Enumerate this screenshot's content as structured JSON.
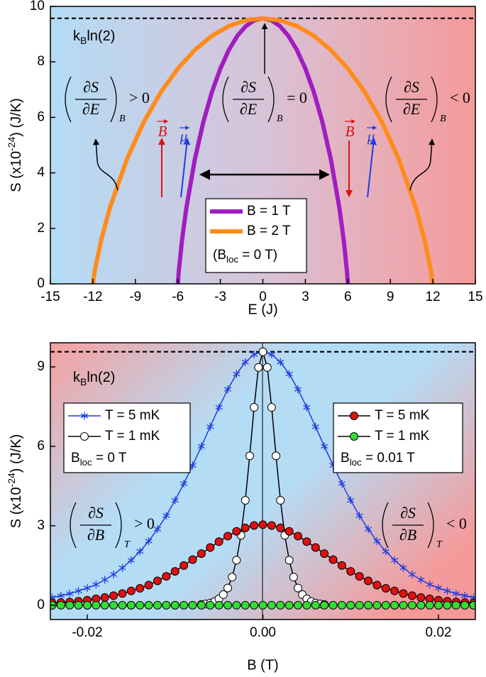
{
  "chart_data": [
    {
      "type": "line",
      "xlabel": "E (J)",
      "ylabel": [
        "S (x10",
        "-24",
        ") (J/K)"
      ],
      "xlim": [
        -15,
        15
      ],
      "xticks": [
        -15,
        -12,
        -9,
        -6,
        -3,
        0,
        3,
        6,
        9,
        12,
        15
      ],
      "ylim": [
        0,
        10
      ],
      "yticks": [
        0,
        2,
        4,
        6,
        8,
        10
      ],
      "reference_line": {
        "value": 9.57,
        "label": [
          "k",
          "B",
          "ln(2)"
        ]
      },
      "series": [
        {
          "name": "B = 1 T",
          "color": "#a01ec0",
          "x": [
            -6,
            -5.94,
            -5.7,
            -5.4,
            -4.8,
            -4.2,
            -3.6,
            -3,
            -2.4,
            -1.8,
            -1.2,
            -0.6,
            0,
            0.6,
            1.2,
            1.8,
            2.4,
            3,
            3.6,
            4.2,
            4.8,
            5.4,
            5.7,
            5.94,
            6
          ],
          "values": [
            0,
            0.43,
            1.61,
            2.74,
            4.49,
            5.84,
            6.91,
            7.76,
            8.43,
            8.94,
            9.29,
            9.5,
            9.57,
            9.5,
            9.29,
            8.94,
            8.43,
            7.76,
            6.91,
            5.84,
            4.49,
            2.74,
            1.61,
            0.43,
            0
          ]
        },
        {
          "name": "B = 2 T",
          "color": "#ff8c1a",
          "x": [
            -12,
            -11.88,
            -11.4,
            -10.8,
            -9.6,
            -8.4,
            -7.2,
            -6,
            -4.8,
            -3.6,
            -2.4,
            -1.2,
            0,
            1.2,
            2.4,
            3.6,
            4.8,
            6,
            7.2,
            8.4,
            9.6,
            10.8,
            11.4,
            11.88,
            12
          ],
          "values": [
            0,
            0.43,
            1.61,
            2.74,
            4.49,
            5.84,
            6.91,
            7.76,
            8.43,
            8.94,
            9.29,
            9.5,
            9.57,
            9.5,
            9.29,
            8.94,
            8.43,
            7.76,
            6.91,
            5.84,
            4.49,
            2.74,
            1.61,
            0.43,
            0
          ]
        }
      ],
      "legend_notes": [
        [
          "(B",
          "loc",
          " = 0 T)"
        ]
      ],
      "annotations": [
        {
          "numerator": "∂S",
          "denominator": "∂E",
          "subscript": "B",
          "relation": "> 0"
        },
        {
          "numerator": "∂S",
          "denominator": "∂E",
          "subscript": "B",
          "relation": "= 0"
        },
        {
          "numerator": "∂S",
          "denominator": "∂E",
          "subscript": "B",
          "relation": "< 0"
        }
      ],
      "vector_labels": [
        "B",
        "μ"
      ]
    },
    {
      "type": "line",
      "xlabel": "B (T)",
      "ylabel": [
        "S (x10",
        "-24",
        ") (J/K)"
      ],
      "xlim": [
        -0.0242,
        0.0242
      ],
      "xticks": [
        -0.02,
        {
          "value": 0,
          "label": "0.00"
        },
        0.02
      ],
      "ylim": [
        -0.54,
        9.91
      ],
      "yticks": [
        0,
        3,
        6,
        9
      ],
      "reference_line": {
        "value": 9.57,
        "label": [
          "k",
          "B",
          "ln(2)"
        ]
      },
      "x": [
        -0.024,
        -0.023,
        -0.022,
        -0.021,
        -0.02,
        -0.019,
        -0.018,
        -0.017,
        -0.016,
        -0.015,
        -0.014,
        -0.013,
        -0.012,
        -0.011,
        -0.01,
        -0.009,
        -0.008,
        -0.007,
        -0.006,
        -0.005,
        -0.004,
        -0.003,
        -0.002,
        -0.001,
        0,
        0.001,
        0.002,
        0.003,
        0.004,
        0.005,
        0.006,
        0.007,
        0.008,
        0.009,
        0.01,
        0.011,
        0.012,
        0.013,
        0.014,
        0.015,
        0.016,
        0.017,
        0.018,
        0.019,
        0.02,
        0.021,
        0.022,
        0.023,
        0.024
      ],
      "series": [
        {
          "name": "T = 5 mK",
          "color": "#1f3de0",
          "marker": "asterisk",
          "values": [
            0.29,
            0.36,
            0.44,
            0.54,
            0.65,
            0.78,
            0.96,
            1.16,
            1.41,
            1.7,
            2.03,
            2.42,
            2.87,
            3.38,
            3.96,
            4.59,
            5.28,
            6.0,
            6.74,
            7.47,
            8.15,
            8.73,
            9.18,
            9.47,
            9.57,
            9.47,
            9.18,
            8.73,
            8.15,
            7.47,
            6.74,
            6.0,
            5.28,
            4.59,
            3.96,
            3.38,
            2.87,
            2.42,
            2.03,
            1.7,
            1.41,
            1.16,
            0.96,
            0.78,
            0.65,
            0.54,
            0.44,
            0.36,
            0.29
          ]
        },
        {
          "name": "T = 1 mK",
          "color": "#ffffff",
          "line_color": "#000000",
          "marker": "circle",
          "x": [
            -0.024,
            -0.02,
            -0.015,
            -0.01,
            -0.007,
            -0.0065,
            -0.006,
            -0.0055,
            -0.005,
            -0.0045,
            -0.004,
            -0.0035,
            -0.003,
            -0.0025,
            -0.002,
            -0.0015,
            -0.001,
            -0.0005,
            0,
            0.0005,
            0.001,
            0.0015,
            0.002,
            0.0025,
            0.003,
            0.0035,
            0.004,
            0.0045,
            0.005,
            0.0055,
            0.006,
            0.0065,
            0.007,
            0.01,
            0.015,
            0.02,
            0.024
          ],
          "values": [
            0,
            0,
            0,
            0,
            0.03,
            0.05,
            0.08,
            0.14,
            0.24,
            0.4,
            0.65,
            1.06,
            1.7,
            2.64,
            3.96,
            5.64,
            7.47,
            8.98,
            9.57,
            8.98,
            7.47,
            5.64,
            3.96,
            2.64,
            1.7,
            1.06,
            0.65,
            0.4,
            0.24,
            0.14,
            0.08,
            0.05,
            0.03,
            0,
            0,
            0,
            0
          ]
        },
        {
          "name": "T = 5 mK",
          "color": "#e01010",
          "line_color": "#000000",
          "marker": "circle",
          "values": [
            0.08,
            0.1,
            0.12,
            0.15,
            0.19,
            0.24,
            0.29,
            0.36,
            0.44,
            0.54,
            0.64,
            0.76,
            0.92,
            1.09,
            1.28,
            1.5,
            1.72,
            1.95,
            2.18,
            2.4,
            2.61,
            2.79,
            2.92,
            3.01,
            3.04,
            3.01,
            2.92,
            2.79,
            2.61,
            2.4,
            2.18,
            1.95,
            1.72,
            1.5,
            1.28,
            1.09,
            0.92,
            0.76,
            0.64,
            0.54,
            0.44,
            0.36,
            0.29,
            0.24,
            0.19,
            0.15,
            0.12,
            0.1,
            0.08
          ]
        },
        {
          "name": "T = 1 mK",
          "color": "#33dd33",
          "line_color": "#000000",
          "marker": "circle",
          "values": [
            0,
            0,
            0,
            0,
            0,
            0,
            0,
            0,
            0,
            0,
            0,
            0,
            0,
            0,
            0,
            0,
            0,
            0,
            0,
            0,
            0,
            0,
            0,
            0,
            0,
            0,
            0,
            0,
            0,
            0,
            0,
            0,
            0,
            0,
            0,
            0,
            0,
            0,
            0,
            0,
            0,
            0,
            0,
            0,
            0,
            0,
            0,
            0,
            0
          ]
        }
      ],
      "legend_notes": [
        [
          "B",
          "loc",
          " = 0 T"
        ],
        [
          "B",
          "loc",
          " = 0.01 T"
        ]
      ],
      "annotations": [
        {
          "numerator": "∂S",
          "denominator": "∂B",
          "subscript": "T",
          "relation": "> 0"
        },
        {
          "numerator": "∂S",
          "denominator": "∂B",
          "subscript": "T",
          "relation": "< 0"
        }
      ]
    }
  ]
}
